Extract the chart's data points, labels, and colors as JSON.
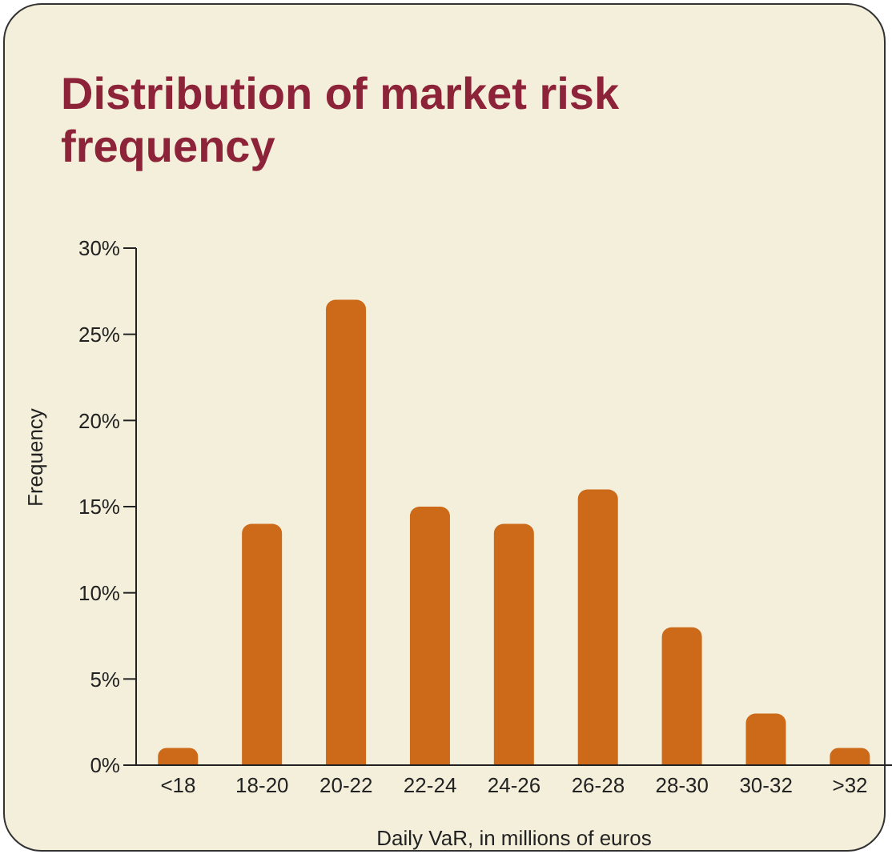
{
  "chart_data": {
    "type": "bar",
    "title": "Distribution of market risk frequency",
    "xlabel": "Daily VaR, in millions of euros",
    "ylabel": "Frequency",
    "categories": [
      "<18",
      "18-20",
      "20-22",
      "22-24",
      "24-26",
      "26-28",
      "28-30",
      "30-32",
      ">32"
    ],
    "values": [
      1,
      14,
      27,
      15,
      14,
      16,
      8,
      3,
      1
    ],
    "color": "#cc6a1a",
    "ylim": [
      0,
      30
    ],
    "yticks": [
      {
        "value": 0,
        "label": "0%"
      },
      {
        "value": 5,
        "label": "5%"
      },
      {
        "value": 10,
        "label": "10%"
      },
      {
        "value": 15,
        "label": "15%"
      },
      {
        "value": 20,
        "label": "20%"
      },
      {
        "value": 25,
        "label": "25%"
      },
      {
        "value": 30,
        "label": "30%"
      }
    ],
    "grid": false,
    "legend": false
  }
}
